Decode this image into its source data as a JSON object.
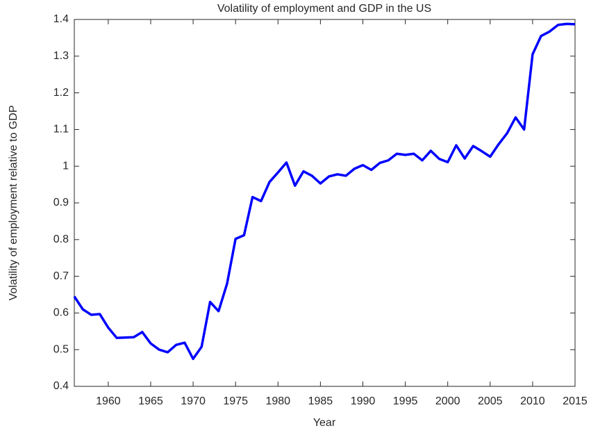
{
  "chart_data": {
    "type": "line",
    "title": "Volatility of employment and GDP in the US",
    "x_label": "Year",
    "y_label": "Volatility of employment relative to GDP",
    "x": [
      1956,
      1957,
      1958,
      1959,
      1960,
      1961,
      1962,
      1963,
      1964,
      1965,
      1966,
      1967,
      1968,
      1969,
      1970,
      1971,
      1972,
      1973,
      1974,
      1975,
      1976,
      1977,
      1978,
      1979,
      1980,
      1981,
      1982,
      1983,
      1984,
      1985,
      1986,
      1987,
      1988,
      1989,
      1990,
      1991,
      1992,
      1993,
      1994,
      1995,
      1996,
      1997,
      1998,
      1999,
      2000,
      2001,
      2002,
      2003,
      2004,
      2005,
      2006,
      2007,
      2008,
      2009,
      2010,
      2011,
      2012,
      2013,
      2014,
      2015
    ],
    "series": [
      {
        "color": "#0000ff",
        "values": [
          0.645,
          0.61,
          0.595,
          0.597,
          0.56,
          0.532,
          0.533,
          0.534,
          0.548,
          0.517,
          0.5,
          0.493,
          0.513,
          0.519,
          0.475,
          0.508,
          0.63,
          0.605,
          0.68,
          0.802,
          0.812,
          0.916,
          0.905,
          0.957,
          0.983,
          1.01,
          0.947,
          0.986,
          0.974,
          0.953,
          0.972,
          0.978,
          0.974,
          0.993,
          1.003,
          0.99,
          1.009,
          1.016,
          1.034,
          1.031,
          1.034,
          1.016,
          1.042,
          1.02,
          1.011,
          1.057,
          1.021,
          1.055,
          1.041,
          1.026,
          1.06,
          1.09,
          1.133,
          1.1,
          1.305,
          1.355,
          1.367,
          1.385,
          1.388,
          1.387
        ]
      }
    ],
    "xlim": [
      1956,
      2015
    ],
    "xticks": [
      1960,
      1965,
      1970,
      1975,
      1980,
      1985,
      1990,
      1995,
      2000,
      2005,
      2010,
      2015
    ],
    "ylim": [
      0.4,
      1.4
    ],
    "yticks": [
      0.4,
      0.5,
      0.6,
      0.7,
      0.8,
      0.9,
      1,
      1.1,
      1.2,
      1.3,
      1.4
    ]
  }
}
